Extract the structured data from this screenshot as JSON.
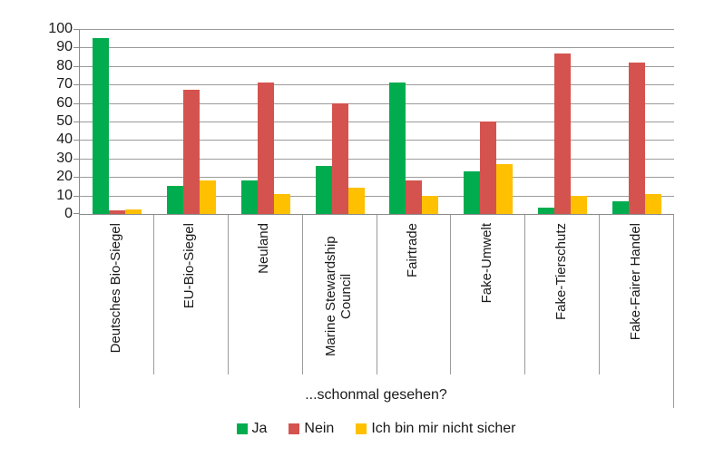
{
  "chart_data": {
    "type": "bar",
    "title": "",
    "xlabel": "...schonmal gesehen?",
    "ylabel": "",
    "ylim": [
      0,
      100
    ],
    "ytick_step": 10,
    "grid": true,
    "legend_position": "bottom",
    "categories": [
      "Deutsches Bio-Siegel",
      "EU-Bio-Siegel",
      "Neuland",
      "Marine Stewardship Council",
      "Fairtrade",
      "Fake-Umwelt",
      "Fake-Tierschutz",
      "Fake-Fairer Handel"
    ],
    "series": [
      {
        "name": "Ja",
        "color": "#00AC4E",
        "values": [
          95,
          15,
          18,
          26,
          71,
          23,
          3.5,
          7
        ]
      },
      {
        "name": "Nein",
        "color": "#D5534F",
        "values": [
          2,
          67,
          71,
          60,
          18,
          50,
          87,
          82
        ]
      },
      {
        "name": "Ich bin mir nicht sicher",
        "color": "#FFC000",
        "values": [
          2.5,
          18,
          11,
          14,
          10,
          27,
          10,
          11
        ]
      }
    ]
  },
  "style": {
    "gridline_color": "#9B9B9B",
    "axis_color": "#8C8C8C",
    "text_color": "#1A1A1A",
    "background": "#FFFFFF"
  }
}
